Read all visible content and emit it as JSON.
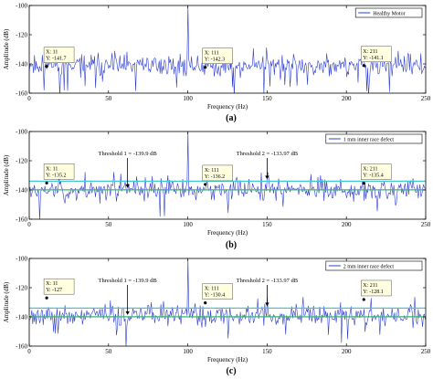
{
  "chart_data": [
    {
      "type": "line",
      "panel_label": "(a)",
      "xlabel": "Frequency (Hz)",
      "ylabel": "Amplitude (dB)",
      "xlim": [
        0,
        250
      ],
      "ylim": [
        -160,
        -100
      ],
      "xticks": [
        "0",
        "50",
        "100",
        "150",
        "200",
        "250"
      ],
      "yticks": [
        "-100",
        "-120",
        "-140",
        "-160"
      ],
      "grid": false,
      "legend_position": "top-right",
      "series": [
        {
          "name": "Healthy Motor",
          "color": "#2f3fd0",
          "baseline": -141,
          "peak_x": 100,
          "peak_y": -100,
          "seed": 11
        }
      ],
      "thresholds": [],
      "datatips": [
        {
          "x": 11,
          "y": -141.7,
          "x_text": "X: 11",
          "y_text": "Y: -141.7"
        },
        {
          "x": 111,
          "y": -142.3,
          "x_text": "X: 111",
          "y_text": "Y: -142.3"
        },
        {
          "x": 211,
          "y": -141.1,
          "x_text": "X: 211",
          "y_text": "Y: -141.1"
        }
      ]
    },
    {
      "type": "line",
      "panel_label": "(b)",
      "xlabel": "Frequency (Hz)",
      "ylabel": "Amplitude (dB)",
      "xlim": [
        0,
        250
      ],
      "ylim": [
        -160,
        -100
      ],
      "xticks": [
        "0",
        "50",
        "100",
        "150",
        "200",
        "250"
      ],
      "yticks": [
        "-100",
        "-120",
        "-140",
        "-160"
      ],
      "grid": false,
      "legend_position": "top-right",
      "series": [
        {
          "name": "1 mm inner race defect",
          "color": "#2f3fd0",
          "baseline": -140,
          "peak_x": 100,
          "peak_y": -100,
          "seed": 23
        }
      ],
      "thresholds": [
        {
          "y": -139.9,
          "color": "#3cb371",
          "label": "Threshold 1 = -139.9 dB",
          "arrow_x": 62
        },
        {
          "y": -133.97,
          "color": "#3fc8d8",
          "label": "Threshold 2 = -133.97 dB",
          "arrow_x": 150
        }
      ],
      "datatips": [
        {
          "x": 11,
          "y": -135.2,
          "x_text": "X: 11",
          "y_text": "Y: -135.2"
        },
        {
          "x": 111,
          "y": -136.2,
          "x_text": "X: 111",
          "y_text": "Y: -136.2"
        },
        {
          "x": 211,
          "y": -135.4,
          "x_text": "X: 211",
          "y_text": "Y: -135.4"
        }
      ]
    },
    {
      "type": "line",
      "panel_label": "(c)",
      "xlabel": "Frequency (Hz)",
      "ylabel": "Amplitude (dB)",
      "xlim": [
        0,
        250
      ],
      "ylim": [
        -160,
        -100
      ],
      "xticks": [
        "0",
        "50",
        "100",
        "150",
        "200",
        "250"
      ],
      "yticks": [
        "-100",
        "-120",
        "-140",
        "-160"
      ],
      "grid": false,
      "legend_position": "top-right",
      "series": [
        {
          "name": "2 mm inner race defect",
          "color": "#2f3fd0",
          "baseline": -139,
          "peak_x": 100,
          "peak_y": -100,
          "seed": 37
        }
      ],
      "thresholds": [
        {
          "y": -139.9,
          "color": "#3cb371",
          "label": "Threshold 1 = -139.9 dB",
          "arrow_x": 62
        },
        {
          "y": -133.97,
          "color": "#3fc8d8",
          "label": "Threshold 2 = -133.97 dB",
          "arrow_x": 150
        }
      ],
      "datatips": [
        {
          "x": 11,
          "y": -127,
          "x_text": "X: 11",
          "y_text": "Y: -127"
        },
        {
          "x": 111,
          "y": -130.4,
          "x_text": "X: 111",
          "y_text": "Y: -130.4"
        },
        {
          "x": 211,
          "y": -128.1,
          "x_text": "X: 211",
          "y_text": "Y: -128.1"
        }
      ]
    }
  ]
}
